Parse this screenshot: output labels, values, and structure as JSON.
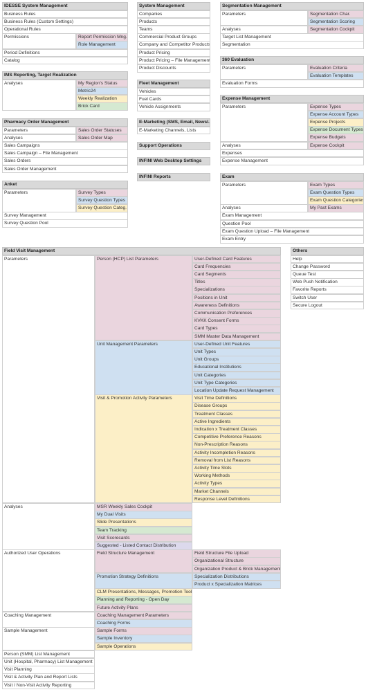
{
  "panels": [
    {
      "title": "IDESSE System Management",
      "items": [
        {
          "label": "Business Rules"
        },
        {
          "label": "Business Rules (Custom Settings)"
        },
        {
          "label": "Operational Rules"
        },
        {
          "label": "Permissions",
          "children": [
            {
              "label": "Report Permission Mng.",
              "color": "#ead5de"
            },
            {
              "label": "Role Management",
              "color": "#cfe0f1"
            }
          ]
        },
        {
          "label": "Period Definitions"
        },
        {
          "label": "Catalog"
        }
      ]
    },
    {
      "title": "IMS Reporting, Target Realization",
      "items": [
        {
          "label": "Analyses",
          "children": [
            {
              "label": "My Region's Status",
              "color": "#ead5de"
            },
            {
              "label": "Metric24",
              "color": "#cfe0f1"
            },
            {
              "label": "Weekly Realization",
              "color": "#fcefc7"
            },
            {
              "label": "Brick Card",
              "color": "#d5e9d1"
            }
          ]
        }
      ]
    },
    {
      "title": "Pharmacy Order Management",
      "items": [
        {
          "label": "Parameters",
          "children": [
            {
              "label": "Sales Order Statuses",
              "color": "#ead5de"
            }
          ]
        },
        {
          "label": "Analyses",
          "children": [
            {
              "label": "Sales Order Map",
              "color": "#ead5de"
            }
          ]
        },
        {
          "label": "Sales Campaigns"
        },
        {
          "label": "Sales Campaign – File Management"
        },
        {
          "label": "Sales Orders"
        },
        {
          "label": "Sales Order Management"
        }
      ]
    },
    {
      "title": "Anket",
      "items": [
        {
          "label": "Parameters",
          "children": [
            {
              "label": "Survey Types",
              "color": "#ead5de"
            },
            {
              "label": "Survey Question Types",
              "color": "#cfe0f1"
            },
            {
              "label": "Survey Question Categ.",
              "color": "#fcefc7"
            }
          ]
        },
        {
          "label": "Survey Management"
        },
        {
          "label": "Survey Question Pool"
        }
      ]
    },
    {
      "title": "System Management",
      "items": [
        {
          "label": "Companies"
        },
        {
          "label": "Products"
        },
        {
          "label": "Teams"
        },
        {
          "label": "Commercial Product Groups"
        },
        {
          "label": "Company and Competitor Products"
        },
        {
          "label": "Product Pricing"
        },
        {
          "label": "Product Pricing – File Management"
        },
        {
          "label": "Product Discounts"
        }
      ]
    },
    {
      "title": "Fleet Management",
      "items": [
        {
          "label": "Vehicles"
        },
        {
          "label": "Fuel Cards"
        },
        {
          "label": "Vehicle Assignments"
        }
      ]
    },
    {
      "title": "E-Marketing (SMS, Email, Newsl.)",
      "items": [
        {
          "label": "E-Marketing Channels, Lists"
        }
      ]
    },
    {
      "title": "Support Operations",
      "items": []
    },
    {
      "title": "INFINI Web Desktop Settings",
      "items": []
    },
    {
      "title": "INFINI Reports",
      "items": []
    },
    {
      "title": "Segmentation Management",
      "items": [
        {
          "label": "Parameters",
          "children": [
            {
              "label": "Segmentation Char.",
              "color": "#ead5de"
            },
            {
              "label": "Segmentation Scoring",
              "color": "#cfe0f1"
            }
          ]
        },
        {
          "label": "Analyses",
          "children": [
            {
              "label": "Segmentation Cockpit",
              "color": "#ead5de"
            }
          ]
        },
        {
          "label": "Target List Management"
        },
        {
          "label": "Segmentation"
        }
      ]
    },
    {
      "title": "360 Evaluation",
      "items": [
        {
          "label": "Parameters",
          "children": [
            {
              "label": "Evaluation Criteria",
              "color": "#ead5de"
            },
            {
              "label": "Evaluation Templates",
              "color": "#cfe0f1"
            }
          ]
        },
        {
          "label": "Evaluation Forms"
        }
      ]
    },
    {
      "title": "Expense Management",
      "items": [
        {
          "label": "Parameters",
          "children": [
            {
              "label": "Expense Types",
              "color": "#ead5de"
            },
            {
              "label": "Expense Account Types",
              "color": "#cfe0f1"
            },
            {
              "label": "Expense Projects",
              "color": "#fcefc7"
            },
            {
              "label": "Expense Document Types",
              "color": "#d5e9d1"
            },
            {
              "label": "Expense Budgets",
              "color": "#ead5de"
            }
          ]
        },
        {
          "label": "Analyses",
          "children": [
            {
              "label": "Expense Cockpit",
              "color": "#ead5de"
            }
          ]
        },
        {
          "label": "Expenses"
        },
        {
          "label": "Expense Management"
        }
      ]
    },
    {
      "title": "Exam",
      "items": [
        {
          "label": "Parameters",
          "children": [
            {
              "label": "Exam Types",
              "color": "#ead5de"
            },
            {
              "label": "Exam Question Types",
              "color": "#cfe0f1"
            },
            {
              "label": "Exam Question Categories",
              "color": "#fcefc7"
            }
          ]
        },
        {
          "label": "Analyses",
          "children": [
            {
              "label": "My Past Exams",
              "color": "#ead5de"
            }
          ]
        },
        {
          "label": "Exam Management"
        },
        {
          "label": "Question Pool"
        },
        {
          "label": "Exam Question Upload – File Management"
        },
        {
          "label": "Exam Entry"
        }
      ]
    },
    {
      "title": "Field Visit Management",
      "items": [
        {
          "label": "Parameters",
          "children": [
            {
              "label": "Person (HCP) List Parameters",
              "color": "#ead5de",
              "children": [
                {
                  "label": "User-Defined Card Features",
                  "color": "#ead5de"
                },
                {
                  "label": "Card Frequencies",
                  "color": "#ead5de"
                },
                {
                  "label": "Card Segments",
                  "color": "#ead5de"
                },
                {
                  "label": "Titles",
                  "color": "#ead5de"
                },
                {
                  "label": "Specializations",
                  "color": "#ead5de"
                },
                {
                  "label": "Positions in Unit",
                  "color": "#ead5de"
                },
                {
                  "label": "Awareness Definitions",
                  "color": "#ead5de"
                },
                {
                  "label": "Communication Preferences",
                  "color": "#ead5de"
                },
                {
                  "label": "KVKK Consent Forms",
                  "color": "#ead5de"
                },
                {
                  "label": "Card Types",
                  "color": "#ead5de"
                },
                {
                  "label": "SMM Master Data Management",
                  "color": "#ead5de"
                }
              ]
            },
            {
              "label": "Unit Management Parameters",
              "color": "#cfe0f1",
              "children": [
                {
                  "label": "User-Defined Unit Features",
                  "color": "#cfe0f1"
                },
                {
                  "label": "Unit Types",
                  "color": "#cfe0f1"
                },
                {
                  "label": "Unit Groups",
                  "color": "#cfe0f1"
                },
                {
                  "label": "Educational Institutions",
                  "color": "#cfe0f1"
                },
                {
                  "label": "Unit Categories",
                  "color": "#cfe0f1"
                },
                {
                  "label": "Unit Type Categories",
                  "color": "#cfe0f1"
                },
                {
                  "label": "Location Update Request Management",
                  "color": "#cfe0f1"
                }
              ]
            },
            {
              "label": "Visit & Promotion Activity Parameters",
              "color": "#fcefc7",
              "children": [
                {
                  "label": "Visit Time Definitions",
                  "color": "#fcefc7"
                },
                {
                  "label": "Disease Groups",
                  "color": "#fcefc7"
                },
                {
                  "label": "Treatment Classes",
                  "color": "#fcefc7"
                },
                {
                  "label": "Active Ingredients",
                  "color": "#fcefc7"
                },
                {
                  "label": "Indication x Treatment Classes",
                  "color": "#fcefc7"
                },
                {
                  "label": "Competitive Preference Reasons",
                  "color": "#fcefc7"
                },
                {
                  "label": "Non-Prescription Reasons",
                  "color": "#fcefc7"
                },
                {
                  "label": "Activity Incompletion Reasons",
                  "color": "#fcefc7"
                },
                {
                  "label": "Removal from List Reasons",
                  "color": "#fcefc7"
                },
                {
                  "label": "Activity Time Slots",
                  "color": "#fcefc7"
                },
                {
                  "label": "Working Methods",
                  "color": "#fcefc7"
                },
                {
                  "label": "Activity Types",
                  "color": "#fcefc7"
                },
                {
                  "label": "Market Channels",
                  "color": "#fcefc7"
                },
                {
                  "label": "Response Level Definitions",
                  "color": "#fcefc7"
                }
              ]
            }
          ]
        },
        {
          "label": "Analyses",
          "children": [
            {
              "label": "MSR Weekly Sales Cockpit",
              "color": "#ead5de"
            },
            {
              "label": "My Dual Visits",
              "color": "#cfe0f1"
            },
            {
              "label": "Slide Presentations",
              "color": "#fcefc7"
            },
            {
              "label": "Team Tracking",
              "color": "#d5e9d1"
            },
            {
              "label": "Visit Scorecards",
              "color": "#ead5de"
            },
            {
              "label": "Suggested - Listed Contact Distribution",
              "color": "#dcd9ec"
            }
          ]
        },
        {
          "label": "Authorized User Operations",
          "children": [
            {
              "label": "Field Structure Management",
              "color": "#ead5de",
              "children": [
                {
                  "label": "Field Structure File Upload",
                  "color": "#ead5de"
                },
                {
                  "label": "Organizational Structure",
                  "color": "#ead5de"
                },
                {
                  "label": "Organization Product & Brick Management",
                  "color": "#ead5de"
                }
              ]
            },
            {
              "label": "Promotion Strategy Definitions",
              "color": "#cfe0f1",
              "children": [
                {
                  "label": "Specialization Distributions",
                  "color": "#cfe0f1"
                },
                {
                  "label": "Product x Specialization Matrices",
                  "color": "#cfe0f1"
                }
              ]
            },
            {
              "label": "CLM Presentations, Messages, Promotion Tools",
              "color": "#fcefc7"
            },
            {
              "label": "Planning and Reporting - Open Day",
              "color": "#d5e9d1"
            },
            {
              "label": "Future Activity Plans",
              "color": "#ead5de"
            }
          ]
        },
        {
          "label": "Coaching Management",
          "children": [
            {
              "label": "Coaching Management Parameters",
              "color": "#ead5de"
            },
            {
              "label": "Coaching Forms",
              "color": "#cfe0f1"
            }
          ]
        },
        {
          "label": "Sample Management",
          "children": [
            {
              "label": "Sample Forms",
              "color": "#ead5de"
            },
            {
              "label": "Sample Inventory",
              "color": "#cfe0f1"
            },
            {
              "label": "Sample Operations",
              "color": "#fcefc7"
            }
          ]
        },
        {
          "label": "Person (SMM) List Management"
        },
        {
          "label": "Unit (Hospital, Pharmacy) List Management"
        },
        {
          "label": "Visit Planning"
        },
        {
          "label": "Visit & Activity Plan and Report Lists"
        },
        {
          "label": "Visit / Non-Visit Activity Reporting"
        }
      ]
    },
    {
      "title": "Others",
      "items": [
        {
          "label": "Help"
        },
        {
          "label": "Change Password"
        },
        {
          "label": "Queue Test"
        },
        {
          "label": "Web Push Notification"
        },
        {
          "label": "Favorite Reports"
        },
        {
          "label": "Switch User"
        },
        {
          "label": "Secure Logout"
        }
      ]
    }
  ]
}
